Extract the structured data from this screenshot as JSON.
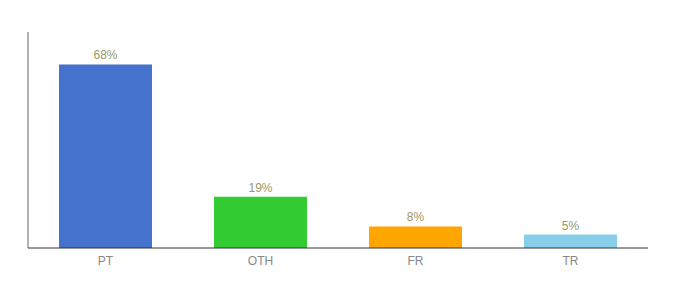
{
  "chart_data": {
    "type": "bar",
    "categories": [
      "PT",
      "OTH",
      "FR",
      "TR"
    ],
    "values": [
      68,
      19,
      8,
      5
    ],
    "value_labels": [
      "68%",
      "19%",
      "8%",
      "5%"
    ],
    "data_labels": true,
    "colors": [
      "#4472CC",
      "#33CC33",
      "#FFA500",
      "#87CEEB"
    ],
    "ylim": [
      0,
      80
    ],
    "grid": false,
    "tick_labels": "x"
  }
}
